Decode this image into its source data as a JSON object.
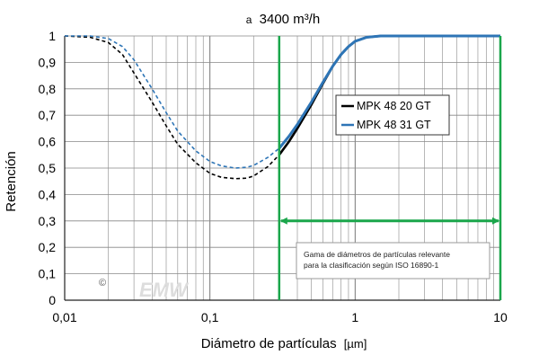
{
  "chart_data": {
    "type": "line",
    "title_prefix": "a",
    "title_main": "3400 m³/h",
    "xlabel_main": "Diámetro de partículas",
    "xlabel_unit": "[µm]",
    "ylabel": "Retención",
    "x_scale": "log",
    "xlim": [
      0.01,
      10
    ],
    "ylim": [
      0,
      1
    ],
    "grid": true,
    "x_ticks": [
      {
        "value": 0.01,
        "label": "0,01"
      },
      {
        "value": 0.1,
        "label": "0,1"
      },
      {
        "value": 1,
        "label": "1"
      },
      {
        "value": 10,
        "label": "10"
      }
    ],
    "y_ticks": [
      {
        "value": 0,
        "label": "0"
      },
      {
        "value": 0.1,
        "label": "0,1"
      },
      {
        "value": 0.2,
        "label": "0,2"
      },
      {
        "value": 0.3,
        "label": "0,3"
      },
      {
        "value": 0.4,
        "label": "0,4"
      },
      {
        "value": 0.5,
        "label": "0,5"
      },
      {
        "value": 0.6,
        "label": "0,6"
      },
      {
        "value": 0.7,
        "label": "0,7"
      },
      {
        "value": 0.8,
        "label": "0,8"
      },
      {
        "value": 0.9,
        "label": "0,9"
      },
      {
        "value": 1,
        "label": "1"
      }
    ],
    "legend_position": "center-right",
    "series": [
      {
        "name": "MPK 48 20 GT",
        "color": "#000000",
        "dashed_below_x": 0.3,
        "x": [
          0.01,
          0.015,
          0.02,
          0.025,
          0.03,
          0.04,
          0.05,
          0.06,
          0.08,
          0.1,
          0.12,
          0.15,
          0.18,
          0.2,
          0.25,
          0.3,
          0.35,
          0.4,
          0.5,
          0.6,
          0.7,
          0.8,
          0.9,
          1.0,
          1.2,
          1.5,
          2,
          3,
          5,
          10
        ],
        "y": [
          1.0,
          0.995,
          0.975,
          0.93,
          0.86,
          0.75,
          0.66,
          0.59,
          0.52,
          0.48,
          0.465,
          0.46,
          0.462,
          0.47,
          0.505,
          0.55,
          0.6,
          0.65,
          0.74,
          0.82,
          0.885,
          0.93,
          0.96,
          0.98,
          0.995,
          1.0,
          1.0,
          1.0,
          1.0,
          1.0
        ]
      },
      {
        "name": "MPK 48 31 GT",
        "color": "#2e75b6",
        "dashed_below_x": 0.3,
        "x": [
          0.01,
          0.015,
          0.02,
          0.025,
          0.03,
          0.04,
          0.05,
          0.06,
          0.08,
          0.1,
          0.12,
          0.15,
          0.18,
          0.2,
          0.25,
          0.3,
          0.35,
          0.4,
          0.5,
          0.6,
          0.7,
          0.8,
          0.9,
          1.0,
          1.2,
          1.5,
          2,
          3,
          5,
          10
        ],
        "y": [
          1.0,
          1.0,
          0.99,
          0.96,
          0.91,
          0.8,
          0.71,
          0.64,
          0.565,
          0.525,
          0.508,
          0.5,
          0.503,
          0.51,
          0.54,
          0.575,
          0.62,
          0.665,
          0.75,
          0.825,
          0.885,
          0.93,
          0.96,
          0.98,
          0.995,
          1.0,
          1.0,
          1.0,
          1.0,
          1.0
        ]
      }
    ],
    "range_marker": {
      "x_start": 0.3,
      "x_end": 10,
      "y": 0.3,
      "color": "#1aa64b",
      "note_lines": [
        "Gama de diámetros de partículas relevante",
        "para la clasificación según ISO 16890-1"
      ]
    },
    "watermark": {
      "symbol": "©",
      "text": "EMW"
    }
  }
}
